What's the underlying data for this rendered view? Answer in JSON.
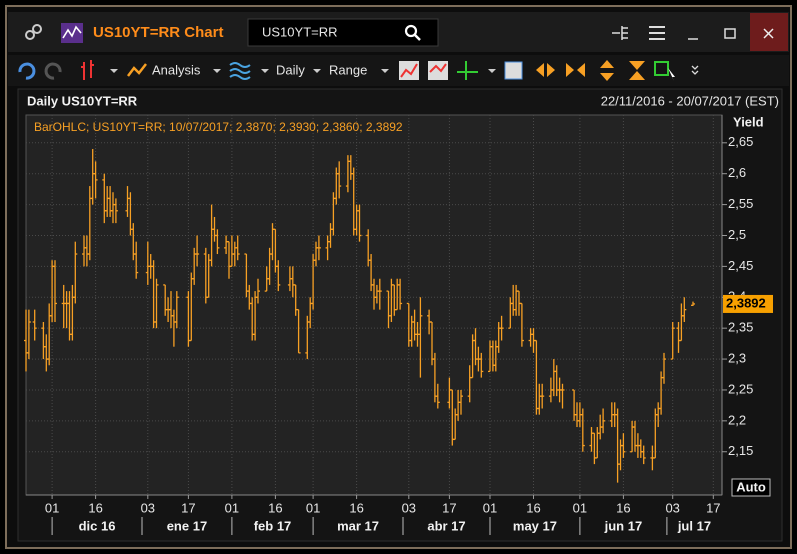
{
  "window": {
    "title": "US10YT=RR Chart",
    "search": "US10YT=RR",
    "toolbar": {
      "analysis": "Analysis",
      "interval": "Daily",
      "range": "Range"
    },
    "chart_header": "Daily US10YT=RR",
    "date_range": "22/11/2016 - 20/07/2017 (EST)",
    "auto": "Auto"
  },
  "chart_data": {
    "type": "ohlc",
    "legend": "BarOHLC; US10YT=RR; 10/07/2017; 2,3870; 2,3930; 2,3860; 2,3892",
    "y_label": "Yield",
    "color": "#f7a024",
    "grid": true,
    "xlim": [
      "2016-11-22",
      "2017-07-20"
    ],
    "ylim": [
      2.08,
      2.695
    ],
    "yticks": [
      {
        "value": 2.15,
        "label": "2,15"
      },
      {
        "value": 2.2,
        "label": "2,2"
      },
      {
        "value": 2.25,
        "label": "2,25"
      },
      {
        "value": 2.3,
        "label": "2,3"
      },
      {
        "value": 2.35,
        "label": "2,35"
      },
      {
        "value": 2.4,
        "label": "2,4"
      },
      {
        "value": 2.45,
        "label": "2,45"
      },
      {
        "value": 2.5,
        "label": "2,5"
      },
      {
        "value": 2.55,
        "label": "2,55"
      },
      {
        "value": 2.6,
        "label": "2,6"
      },
      {
        "value": 2.65,
        "label": "2,65"
      }
    ],
    "xticks": [
      {
        "value": "2016-12-01",
        "label": "01"
      },
      {
        "value": "2016-12-16",
        "label": "16"
      },
      {
        "value": "2017-01-03",
        "label": "03"
      },
      {
        "value": "2017-01-17",
        "label": "17"
      },
      {
        "value": "2017-02-01",
        "label": "01"
      },
      {
        "value": "2017-02-16",
        "label": "16"
      },
      {
        "value": "2017-03-01",
        "label": "01"
      },
      {
        "value": "2017-03-16",
        "label": "16"
      },
      {
        "value": "2017-04-03",
        "label": "03"
      },
      {
        "value": "2017-04-17",
        "label": "17"
      },
      {
        "value": "2017-05-01",
        "label": "01"
      },
      {
        "value": "2017-05-16",
        "label": "16"
      },
      {
        "value": "2017-06-01",
        "label": "01"
      },
      {
        "value": "2017-06-16",
        "label": "16"
      },
      {
        "value": "2017-07-03",
        "label": "03"
      },
      {
        "value": "2017-07-17",
        "label": "17"
      }
    ],
    "months": [
      {
        "value": "2016-12",
        "label": "dic 16"
      },
      {
        "value": "2017-01",
        "label": "ene 17"
      },
      {
        "value": "2017-02",
        "label": "feb 17"
      },
      {
        "value": "2017-03",
        "label": "mar 17"
      },
      {
        "value": "2017-04",
        "label": "abr 17"
      },
      {
        "value": "2017-05",
        "label": "may 17"
      },
      {
        "value": "2017-06",
        "label": "jun 17"
      },
      {
        "value": "2017-07",
        "label": "jul 17"
      }
    ],
    "last_value": {
      "value": 2.3892,
      "label": "2,3892"
    },
    "x": [
      "2016-11-22",
      "2016-11-23",
      "2016-11-25",
      "2016-11-28",
      "2016-11-29",
      "2016-11-30",
      "2016-12-01",
      "2016-12-02",
      "2016-12-05",
      "2016-12-06",
      "2016-12-07",
      "2016-12-08",
      "2016-12-09",
      "2016-12-12",
      "2016-12-13",
      "2016-12-14",
      "2016-12-15",
      "2016-12-16",
      "2016-12-19",
      "2016-12-20",
      "2016-12-21",
      "2016-12-22",
      "2016-12-23",
      "2016-12-27",
      "2016-12-28",
      "2016-12-29",
      "2016-12-30",
      "2017-01-03",
      "2017-01-04",
      "2017-01-05",
      "2017-01-06",
      "2017-01-09",
      "2017-01-10",
      "2017-01-11",
      "2017-01-12",
      "2017-01-13",
      "2017-01-17",
      "2017-01-18",
      "2017-01-19",
      "2017-01-20",
      "2017-01-23",
      "2017-01-24",
      "2017-01-25",
      "2017-01-26",
      "2017-01-27",
      "2017-01-30",
      "2017-01-31",
      "2017-02-01",
      "2017-02-02",
      "2017-02-03",
      "2017-02-06",
      "2017-02-07",
      "2017-02-08",
      "2017-02-09",
      "2017-02-10",
      "2017-02-13",
      "2017-02-14",
      "2017-02-15",
      "2017-02-16",
      "2017-02-17",
      "2017-02-21",
      "2017-02-22",
      "2017-02-23",
      "2017-02-24",
      "2017-02-27",
      "2017-02-28",
      "2017-03-01",
      "2017-03-02",
      "2017-03-03",
      "2017-03-06",
      "2017-03-07",
      "2017-03-08",
      "2017-03-09",
      "2017-03-10",
      "2017-03-13",
      "2017-03-14",
      "2017-03-15",
      "2017-03-16",
      "2017-03-17",
      "2017-03-20",
      "2017-03-21",
      "2017-03-22",
      "2017-03-23",
      "2017-03-24",
      "2017-03-27",
      "2017-03-28",
      "2017-03-29",
      "2017-03-30",
      "2017-03-31",
      "2017-04-03",
      "2017-04-04",
      "2017-04-05",
      "2017-04-06",
      "2017-04-07",
      "2017-04-10",
      "2017-04-11",
      "2017-04-12",
      "2017-04-13",
      "2017-04-17",
      "2017-04-18",
      "2017-04-19",
      "2017-04-20",
      "2017-04-21",
      "2017-04-24",
      "2017-04-25",
      "2017-04-26",
      "2017-04-27",
      "2017-04-28",
      "2017-05-01",
      "2017-05-02",
      "2017-05-03",
      "2017-05-04",
      "2017-05-05",
      "2017-05-08",
      "2017-05-09",
      "2017-05-10",
      "2017-05-11",
      "2017-05-12",
      "2017-05-15",
      "2017-05-16",
      "2017-05-17",
      "2017-05-18",
      "2017-05-19",
      "2017-05-22",
      "2017-05-23",
      "2017-05-24",
      "2017-05-25",
      "2017-05-26",
      "2017-05-30",
      "2017-05-31",
      "2017-06-01",
      "2017-06-02",
      "2017-06-05",
      "2017-06-06",
      "2017-06-07",
      "2017-06-08",
      "2017-06-09",
      "2017-06-12",
      "2017-06-13",
      "2017-06-14",
      "2017-06-15",
      "2017-06-16",
      "2017-06-19",
      "2017-06-20",
      "2017-06-21",
      "2017-06-22",
      "2017-06-23",
      "2017-06-26",
      "2017-06-27",
      "2017-06-28",
      "2017-06-29",
      "2017-06-30",
      "2017-07-03",
      "2017-07-05",
      "2017-07-06",
      "2017-07-07",
      "2017-07-10"
    ],
    "open": [
      2.33,
      2.31,
      2.36,
      2.35,
      2.32,
      2.3,
      2.37,
      2.45,
      2.39,
      2.39,
      2.39,
      2.34,
      2.4,
      2.47,
      2.48,
      2.47,
      2.56,
      2.6,
      2.59,
      2.54,
      2.56,
      2.54,
      2.55,
      2.54,
      2.56,
      2.51,
      2.47,
      2.44,
      2.45,
      2.45,
      2.36,
      2.42,
      2.38,
      2.38,
      2.37,
      2.36,
      2.4,
      2.33,
      2.43,
      2.47,
      2.47,
      2.4,
      2.46,
      2.51,
      2.5,
      2.48,
      2.49,
      2.45,
      2.47,
      2.48,
      2.47,
      2.41,
      2.39,
      2.34,
      2.4,
      2.41,
      2.43,
      2.47,
      2.51,
      2.45,
      2.42,
      2.43,
      2.42,
      2.38,
      2.31,
      2.36,
      2.39,
      2.46,
      2.48,
      2.48,
      2.49,
      2.51,
      2.56,
      2.6,
      2.58,
      2.62,
      2.6,
      2.51,
      2.54,
      2.5,
      2.46,
      2.42,
      2.4,
      2.41,
      2.41,
      2.37,
      2.42,
      2.38,
      2.42,
      2.39,
      2.33,
      2.36,
      2.34,
      2.34,
      2.37,
      2.36,
      2.3,
      2.24,
      2.23,
      2.25,
      2.17,
      2.21,
      2.23,
      2.24,
      2.27,
      2.33,
      2.3,
      2.3,
      2.28,
      2.32,
      2.29,
      2.32,
      2.35,
      2.35,
      2.39,
      2.38,
      2.41,
      2.39,
      2.33,
      2.34,
      2.33,
      2.22,
      2.24,
      2.24,
      2.25,
      2.28,
      2.25,
      2.25,
      2.25,
      2.21,
      2.2,
      2.21,
      2.16,
      2.18,
      2.14,
      2.18,
      2.19,
      2.2,
      2.21,
      2.21,
      2.13,
      2.16,
      2.15,
      2.19,
      2.16,
      2.16,
      2.15,
      2.14,
      2.14,
      2.21,
      2.22,
      2.27,
      2.3,
      2.35,
      2.33,
      2.37,
      2.387
    ],
    "high": [
      2.38,
      2.38,
      2.38,
      2.36,
      2.34,
      2.39,
      2.46,
      2.46,
      2.42,
      2.41,
      2.41,
      2.42,
      2.49,
      2.5,
      2.5,
      2.58,
      2.64,
      2.62,
      2.6,
      2.58,
      2.58,
      2.57,
      2.56,
      2.58,
      2.57,
      2.52,
      2.49,
      2.49,
      2.47,
      2.46,
      2.43,
      2.42,
      2.4,
      2.41,
      2.38,
      2.41,
      2.41,
      2.44,
      2.48,
      2.5,
      2.48,
      2.47,
      2.55,
      2.53,
      2.51,
      2.5,
      2.49,
      2.5,
      2.49,
      2.5,
      2.47,
      2.42,
      2.4,
      2.41,
      2.43,
      2.45,
      2.48,
      2.52,
      2.51,
      2.46,
      2.45,
      2.45,
      2.42,
      2.38,
      2.37,
      2.4,
      2.47,
      2.49,
      2.5,
      2.5,
      2.52,
      2.57,
      2.61,
      2.62,
      2.63,
      2.63,
      2.61,
      2.55,
      2.55,
      2.51,
      2.47,
      2.43,
      2.42,
      2.43,
      2.41,
      2.43,
      2.42,
      2.43,
      2.43,
      2.39,
      2.37,
      2.38,
      2.36,
      2.4,
      2.38,
      2.36,
      2.31,
      2.26,
      2.27,
      2.25,
      2.22,
      2.25,
      2.25,
      2.29,
      2.34,
      2.35,
      2.32,
      2.31,
      2.33,
      2.33,
      2.33,
      2.36,
      2.37,
      2.4,
      2.42,
      2.42,
      2.41,
      2.39,
      2.35,
      2.35,
      2.33,
      2.26,
      2.26,
      2.27,
      2.3,
      2.29,
      2.27,
      2.26,
      2.25,
      2.23,
      2.23,
      2.22,
      2.19,
      2.18,
      2.19,
      2.21,
      2.22,
      2.23,
      2.23,
      2.22,
      2.17,
      2.18,
      2.2,
      2.2,
      2.18,
      2.17,
      2.16,
      2.16,
      2.22,
      2.23,
      2.28,
      2.31,
      2.36,
      2.36,
      2.39,
      2.4,
      2.393
    ],
    "low": [
      2.28,
      2.3,
      2.33,
      2.3,
      2.28,
      2.29,
      2.36,
      2.36,
      2.35,
      2.35,
      2.33,
      2.33,
      2.39,
      2.45,
      2.45,
      2.46,
      2.55,
      2.56,
      2.52,
      2.53,
      2.53,
      2.52,
      2.52,
      2.53,
      2.5,
      2.46,
      2.43,
      2.42,
      2.43,
      2.35,
      2.35,
      2.37,
      2.36,
      2.35,
      2.32,
      2.35,
      2.32,
      2.33,
      2.42,
      2.45,
      2.39,
      2.4,
      2.45,
      2.49,
      2.47,
      2.47,
      2.43,
      2.45,
      2.45,
      2.46,
      2.4,
      2.38,
      2.33,
      2.33,
      2.39,
      2.41,
      2.42,
      2.46,
      2.44,
      2.41,
      2.41,
      2.4,
      2.37,
      2.31,
      2.3,
      2.35,
      2.38,
      2.45,
      2.46,
      2.46,
      2.48,
      2.5,
      2.55,
      2.56,
      2.57,
      2.59,
      2.5,
      2.5,
      2.49,
      2.45,
      2.41,
      2.38,
      2.39,
      2.38,
      2.35,
      2.36,
      2.37,
      2.38,
      2.38,
      2.32,
      2.32,
      2.33,
      2.32,
      2.27,
      2.34,
      2.29,
      2.23,
      2.22,
      2.22,
      2.16,
      2.17,
      2.2,
      2.21,
      2.23,
      2.27,
      2.29,
      2.28,
      2.27,
      2.28,
      2.28,
      2.28,
      2.31,
      2.33,
      2.35,
      2.37,
      2.37,
      2.37,
      2.32,
      2.32,
      2.31,
      2.21,
      2.21,
      2.22,
      2.23,
      2.24,
      2.24,
      2.23,
      2.22,
      2.2,
      2.19,
      2.19,
      2.15,
      2.15,
      2.13,
      2.14,
      2.17,
      2.18,
      2.19,
      2.19,
      2.1,
      2.12,
      2.14,
      2.15,
      2.15,
      2.14,
      2.14,
      2.13,
      2.12,
      2.14,
      2.19,
      2.21,
      2.26,
      2.3,
      2.31,
      2.33,
      2.36,
      2.386
    ],
    "close": [
      2.31,
      2.36,
      2.35,
      2.32,
      2.3,
      2.37,
      2.45,
      2.39,
      2.39,
      2.39,
      2.34,
      2.4,
      2.47,
      2.48,
      2.47,
      2.56,
      2.6,
      2.59,
      2.54,
      2.56,
      2.54,
      2.55,
      2.54,
      2.56,
      2.51,
      2.47,
      2.44,
      2.45,
      2.45,
      2.36,
      2.42,
      2.38,
      2.38,
      2.37,
      2.36,
      2.4,
      2.33,
      2.43,
      2.47,
      2.47,
      2.4,
      2.46,
      2.51,
      2.5,
      2.48,
      2.49,
      2.45,
      2.47,
      2.48,
      2.47,
      2.41,
      2.39,
      2.34,
      2.4,
      2.41,
      2.43,
      2.47,
      2.51,
      2.45,
      2.42,
      2.43,
      2.42,
      2.38,
      2.31,
      2.36,
      2.39,
      2.46,
      2.48,
      2.48,
      2.49,
      2.51,
      2.56,
      2.6,
      2.58,
      2.62,
      2.6,
      2.51,
      2.54,
      2.5,
      2.46,
      2.42,
      2.4,
      2.41,
      2.41,
      2.37,
      2.42,
      2.38,
      2.42,
      2.39,
      2.33,
      2.36,
      2.34,
      2.34,
      2.37,
      2.36,
      2.3,
      2.24,
      2.23,
      2.25,
      2.17,
      2.21,
      2.23,
      2.24,
      2.27,
      2.33,
      2.3,
      2.3,
      2.28,
      2.32,
      2.29,
      2.32,
      2.35,
      2.35,
      2.39,
      2.38,
      2.41,
      2.39,
      2.33,
      2.34,
      2.33,
      2.22,
      2.24,
      2.24,
      2.25,
      2.28,
      2.25,
      2.25,
      2.25,
      2.21,
      2.2,
      2.21,
      2.16,
      2.18,
      2.14,
      2.18,
      2.19,
      2.2,
      2.21,
      2.21,
      2.13,
      2.16,
      2.15,
      2.19,
      2.16,
      2.16,
      2.15,
      2.14,
      2.14,
      2.21,
      2.22,
      2.27,
      2.3,
      2.35,
      2.33,
      2.37,
      2.38,
      2.3892
    ]
  }
}
